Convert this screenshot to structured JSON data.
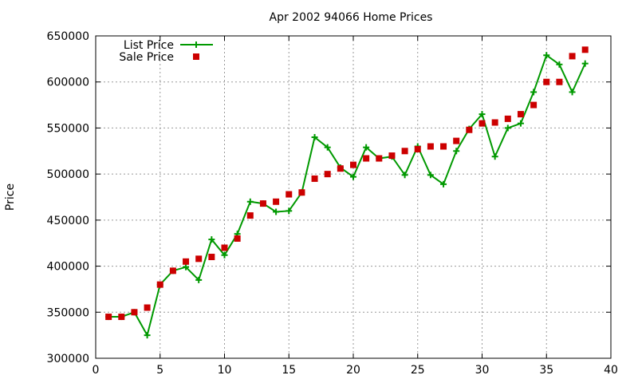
{
  "chart_data": {
    "type": "line",
    "title": "Apr 2002 94066 Home Prices",
    "xlabel": "",
    "ylabel": "Price",
    "xlim": [
      0,
      40
    ],
    "ylim": [
      300000,
      650000
    ],
    "x_ticks": [
      "0",
      "5",
      "10",
      "15",
      "20",
      "25",
      "30",
      "35",
      "40"
    ],
    "y_ticks": [
      "300000",
      "350000",
      "400000",
      "450000",
      "500000",
      "550000",
      "600000",
      "650000"
    ],
    "grid": true,
    "legend_position": "top-left",
    "series": [
      {
        "name": "List Price",
        "style": "line with plus markers",
        "color": "#009900",
        "x": [
          1,
          2,
          3,
          4,
          5,
          6,
          7,
          8,
          9,
          10,
          11,
          12,
          13,
          14,
          15,
          16,
          17,
          18,
          19,
          20,
          21,
          22,
          23,
          24,
          25,
          26,
          27,
          28,
          29,
          30,
          31,
          32,
          33,
          34,
          35,
          36,
          37,
          38
        ],
        "y": [
          345000,
          345000,
          350000,
          325000,
          380000,
          395000,
          399000,
          385000,
          429000,
          412000,
          435000,
          470000,
          468000,
          459000,
          460000,
          480000,
          540000,
          529000,
          507000,
          497000,
          529000,
          517000,
          519000,
          499000,
          530000,
          499000,
          489000,
          525000,
          549000,
          565000,
          519000,
          550000,
          555000,
          589000,
          629000,
          619000,
          589000,
          620000
        ]
      },
      {
        "name": "Sale Price",
        "style": "square markers",
        "color": "#cc0000",
        "x": [
          1,
          2,
          3,
          4,
          5,
          6,
          7,
          8,
          9,
          10,
          11,
          12,
          13,
          14,
          15,
          16,
          17,
          18,
          19,
          20,
          21,
          22,
          23,
          24,
          25,
          26,
          27,
          28,
          29,
          30,
          31,
          32,
          33,
          34,
          35,
          36,
          37,
          38
        ],
        "y": [
          345000,
          345000,
          350000,
          355000,
          380000,
          395000,
          405000,
          408000,
          410000,
          420000,
          430000,
          455000,
          468000,
          470000,
          478000,
          480000,
          495000,
          500000,
          506000,
          510000,
          517000,
          517000,
          520000,
          525000,
          527000,
          530000,
          530000,
          536000,
          548000,
          555000,
          556000,
          560000,
          565000,
          575000,
          600000,
          600000,
          628000,
          635000
        ]
      }
    ]
  }
}
